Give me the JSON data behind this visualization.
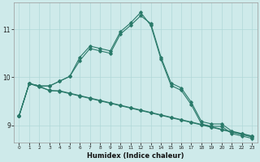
{
  "xlabel": "Humidex (Indice chaleur)",
  "ylabel": "",
  "bg_color": "#ceeaea",
  "line_color": "#2a7a6a",
  "grid_color": "#b0d8d8",
  "xlim": [
    -0.5,
    23.5
  ],
  "ylim": [
    8.65,
    11.55
  ],
  "yticks": [
    9,
    10,
    11
  ],
  "xticks": [
    0,
    1,
    2,
    3,
    4,
    5,
    6,
    7,
    8,
    9,
    10,
    11,
    12,
    13,
    14,
    15,
    16,
    17,
    18,
    19,
    20,
    21,
    22,
    23
  ],
  "series": [
    {
      "x": [
        0,
        1,
        2,
        3,
        4,
        5,
        6,
        7,
        8,
        9,
        10,
        11,
        12,
        13,
        14,
        15,
        16,
        17,
        18,
        19,
        20,
        21,
        22,
        23
      ],
      "y": [
        9.2,
        9.87,
        9.82,
        9.82,
        9.92,
        10.02,
        10.35,
        10.6,
        10.55,
        10.5,
        10.9,
        11.08,
        11.28,
        11.12,
        10.42,
        9.88,
        9.78,
        9.48,
        9.08,
        9.03,
        9.03,
        8.88,
        8.83,
        8.78
      ]
    },
    {
      "x": [
        0,
        1,
        2,
        3,
        4,
        5,
        6,
        7,
        8,
        9,
        10,
        11,
        12,
        13,
        14,
        15,
        16,
        17,
        18,
        19,
        20,
        21,
        22,
        23
      ],
      "y": [
        9.2,
        9.87,
        9.82,
        9.82,
        9.92,
        10.02,
        10.42,
        10.65,
        10.6,
        10.55,
        10.95,
        11.13,
        11.35,
        11.08,
        10.38,
        9.83,
        9.73,
        9.43,
        9.03,
        8.98,
        8.98,
        8.83,
        8.78,
        8.73
      ]
    },
    {
      "x": [
        0,
        1,
        2,
        3,
        4,
        5,
        6,
        7,
        8,
        9,
        10,
        11,
        12,
        13,
        14,
        15,
        16,
        17,
        18,
        19,
        20,
        21,
        22,
        23
      ],
      "y": [
        9.2,
        9.87,
        9.82,
        9.72,
        9.72,
        9.67,
        9.62,
        9.57,
        9.52,
        9.47,
        9.42,
        9.37,
        9.32,
        9.27,
        9.22,
        9.17,
        9.12,
        9.07,
        9.02,
        8.97,
        8.92,
        8.87,
        8.82,
        8.77
      ]
    },
    {
      "x": [
        0,
        1,
        2,
        3,
        4,
        5,
        6,
        7,
        8,
        9,
        10,
        11,
        12,
        13,
        14,
        15,
        16,
        17,
        18,
        19,
        20,
        21,
        22,
        23
      ],
      "y": [
        9.2,
        9.87,
        9.8,
        9.73,
        9.71,
        9.66,
        9.61,
        9.56,
        9.51,
        9.46,
        9.41,
        9.36,
        9.31,
        9.26,
        9.21,
        9.16,
        9.11,
        9.06,
        9.01,
        8.96,
        8.91,
        8.86,
        8.81,
        8.76
      ]
    }
  ]
}
